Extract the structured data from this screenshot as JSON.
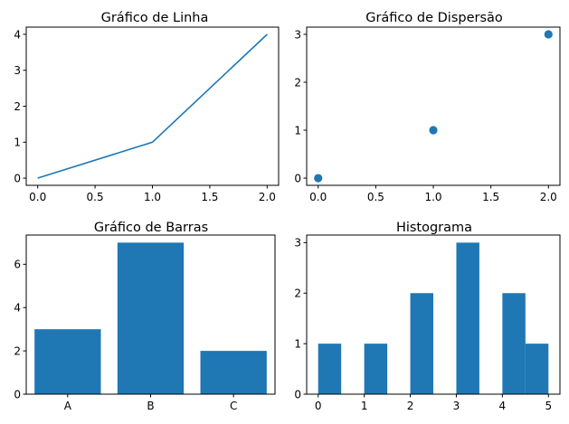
{
  "chart_data": [
    {
      "type": "line",
      "title": "Gráfico de Linha",
      "x": [
        0,
        1,
        2
      ],
      "y": [
        0,
        1,
        4
      ],
      "xlim": [
        -0.1,
        2.1
      ],
      "ylim": [
        -0.2,
        4.2
      ],
      "xticks": [
        0,
        0.5,
        1,
        1.5,
        2
      ],
      "xticklabels": [
        "0.0",
        "0.5",
        "1.0",
        "1.5",
        "2.0"
      ],
      "yticks": [
        0,
        1,
        2,
        3,
        4
      ],
      "yticklabels": [
        "0",
        "1",
        "2",
        "3",
        "4"
      ],
      "color": "#1f77b4",
      "grid": false
    },
    {
      "type": "scatter",
      "title": "Gráfico de Dispersão",
      "x": [
        0,
        1,
        2
      ],
      "y": [
        0,
        1,
        3
      ],
      "xlim": [
        -0.1,
        2.1
      ],
      "ylim": [
        -0.15,
        3.15
      ],
      "xticks": [
        0,
        0.5,
        1,
        1.5,
        2
      ],
      "xticklabels": [
        "0.0",
        "0.5",
        "1.0",
        "1.5",
        "2.0"
      ],
      "yticks": [
        0,
        1,
        2,
        3
      ],
      "yticklabels": [
        "0",
        "1",
        "2",
        "3"
      ],
      "color": "#1f77b4",
      "grid": false
    },
    {
      "type": "bar",
      "title": "Gráfico de Barras",
      "categories": [
        "A",
        "B",
        "C"
      ],
      "values": [
        3,
        7,
        2
      ],
      "ylim": [
        0,
        7.35
      ],
      "yticks": [
        0,
        2,
        4,
        6
      ],
      "yticklabels": [
        "0",
        "2",
        "4",
        "6"
      ],
      "color": "#1f77b4",
      "grid": false
    },
    {
      "type": "bar",
      "title": "Histograma",
      "bins": [
        {
          "start": 0.0,
          "end": 0.5,
          "count": 1
        },
        {
          "start": 0.5,
          "end": 1.0,
          "count": 0
        },
        {
          "start": 1.0,
          "end": 1.5,
          "count": 1
        },
        {
          "start": 1.5,
          "end": 2.0,
          "count": 0
        },
        {
          "start": 2.0,
          "end": 2.5,
          "count": 2
        },
        {
          "start": 2.5,
          "end": 3.0,
          "count": 0
        },
        {
          "start": 3.0,
          "end": 3.5,
          "count": 3
        },
        {
          "start": 3.5,
          "end": 4.0,
          "count": 0
        },
        {
          "start": 4.0,
          "end": 4.5,
          "count": 2
        },
        {
          "start": 4.5,
          "end": 5.0,
          "count": 1
        }
      ],
      "xlim": [
        -0.25,
        5.25
      ],
      "ylim": [
        0,
        3.15
      ],
      "xticks": [
        0,
        1,
        2,
        3,
        4,
        5
      ],
      "xticklabels": [
        "0",
        "1",
        "2",
        "3",
        "4",
        "5"
      ],
      "yticks": [
        0,
        1,
        2,
        3
      ],
      "yticklabels": [
        "0",
        "1",
        "2",
        "3"
      ],
      "color": "#1f77b4",
      "grid": false
    }
  ]
}
